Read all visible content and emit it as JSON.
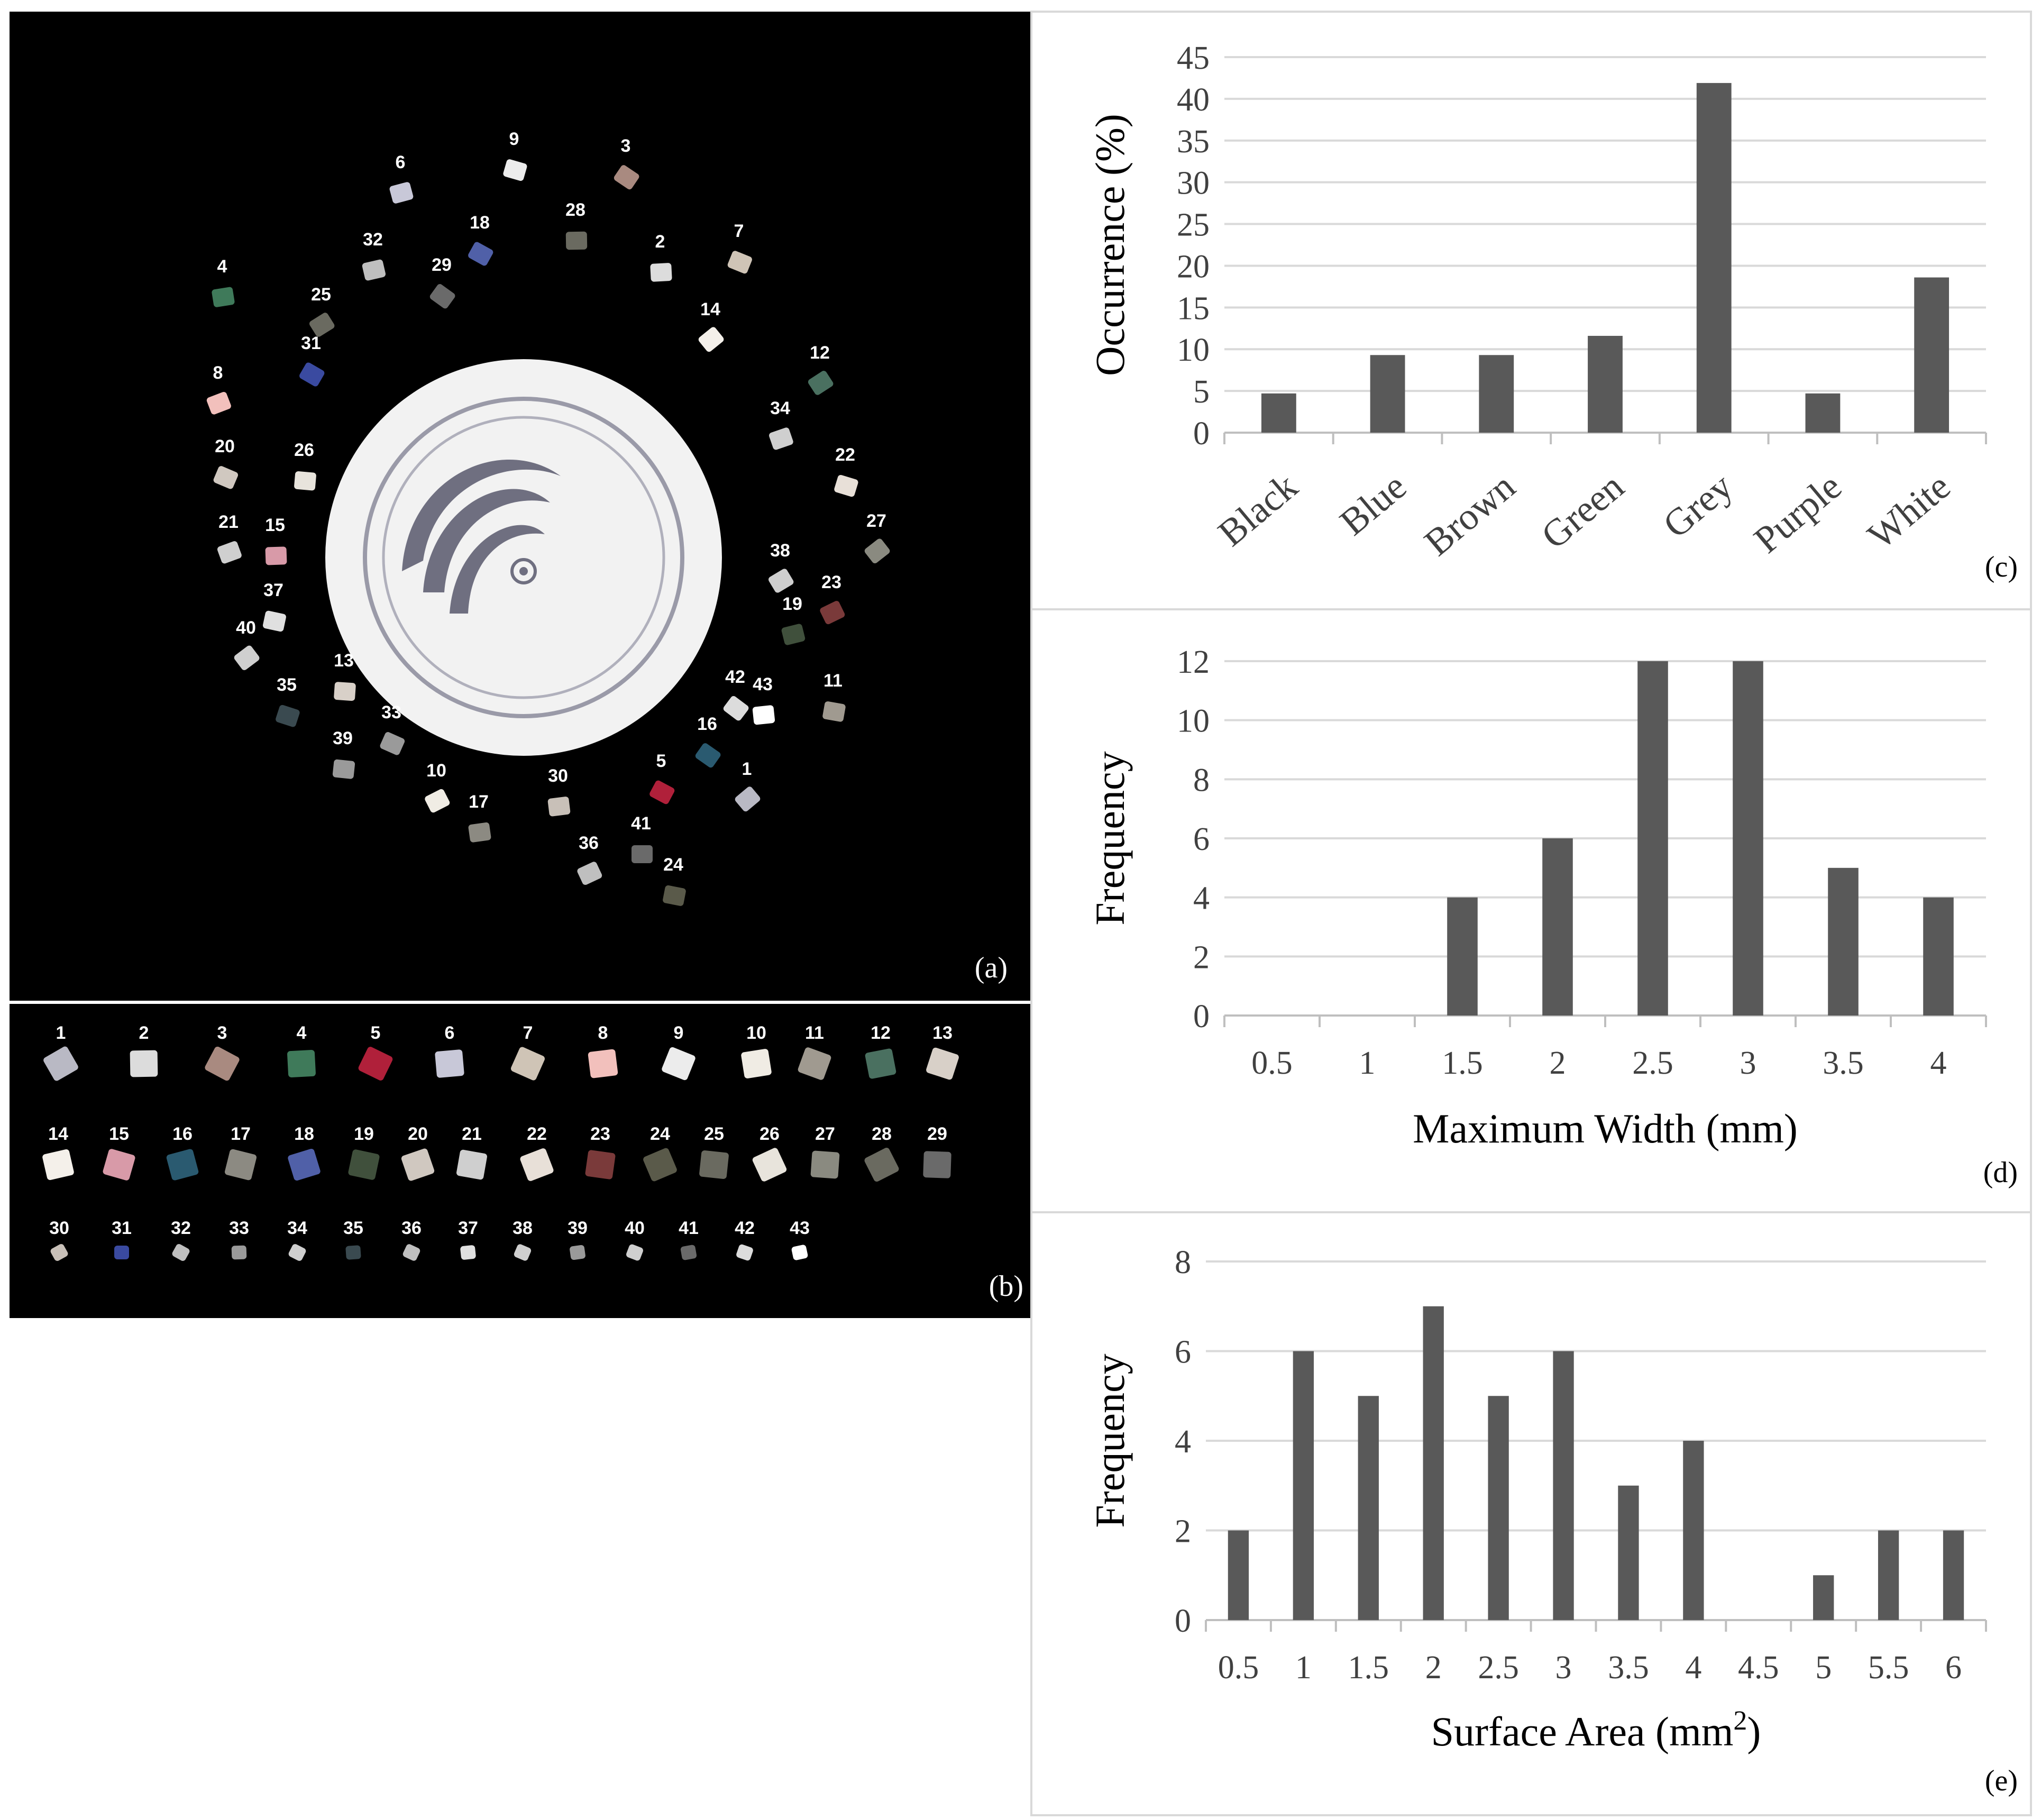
{
  "panel_a": {
    "label": "(a)",
    "particle_numbers": [
      "1",
      "2",
      "3",
      "4",
      "5",
      "6",
      "7",
      "8",
      "9",
      "10",
      "11",
      "12",
      "13",
      "14",
      "15",
      "16",
      "17",
      "18",
      "19",
      "20",
      "21",
      "22",
      "23",
      "24",
      "25",
      "26",
      "27",
      "28",
      "29",
      "30",
      "31",
      "32",
      "33",
      "34",
      "35",
      "36",
      "37",
      "38",
      "39",
      "40",
      "41",
      "42",
      "43"
    ]
  },
  "panel_b": {
    "label": "(b)",
    "particle_numbers": [
      "1",
      "2",
      "3",
      "4",
      "5",
      "6",
      "7",
      "8",
      "9",
      "10",
      "11",
      "12",
      "13",
      "14",
      "15",
      "16",
      "17",
      "18",
      "19",
      "20",
      "21",
      "22",
      "23",
      "24",
      "25",
      "26",
      "27",
      "28",
      "29",
      "30",
      "31",
      "32",
      "33",
      "34",
      "35",
      "36",
      "37",
      "38",
      "39",
      "40",
      "41",
      "42",
      "43"
    ]
  },
  "chart_data": [
    {
      "panel": "(c)",
      "type": "bar",
      "categories": [
        "Black",
        "Blue",
        "Brown",
        "Green",
        "Grey",
        "Purple",
        "White"
      ],
      "values": [
        4.7,
        9.3,
        9.3,
        11.6,
        41.9,
        4.7,
        18.6
      ],
      "ylabel": "Occurrence (%)",
      "xlabel": "",
      "ylim": [
        0,
        45
      ],
      "yticks": [
        "0",
        "5",
        "10",
        "15",
        "20",
        "25",
        "30",
        "35",
        "40",
        "45"
      ],
      "grid": true
    },
    {
      "panel": "(d)",
      "type": "bar",
      "categories": [
        "0.5",
        "1",
        "1.5",
        "2",
        "2.5",
        "3",
        "3.5",
        "4"
      ],
      "values": [
        0,
        0,
        4,
        6,
        12,
        12,
        5,
        4
      ],
      "ylabel": "Frequency",
      "xlabel": "Maximum Width (mm)",
      "ylim": [
        0,
        12
      ],
      "yticks": [
        "0",
        "2",
        "4",
        "6",
        "8",
        "10",
        "12"
      ],
      "grid": true
    },
    {
      "panel": "(e)",
      "type": "bar",
      "categories": [
        "0.5",
        "1",
        "1.5",
        "2",
        "2.5",
        "3",
        "3.5",
        "4",
        "4.5",
        "5",
        "5.5",
        "6"
      ],
      "values": [
        2,
        6,
        5,
        7,
        5,
        6,
        3,
        4,
        0,
        1,
        2,
        2
      ],
      "ylabel": "Frequency",
      "xlabel_main": "Surface Area (mm",
      "xlabel_sup": "2",
      "xlabel_end": ")",
      "ylim": [
        0,
        8
      ],
      "yticks": [
        "0",
        "2",
        "4",
        "6",
        "8"
      ],
      "grid": true
    }
  ],
  "colors": {
    "bar": "#595959",
    "photo_background": "#000000",
    "grid": "#d9d9d9"
  }
}
